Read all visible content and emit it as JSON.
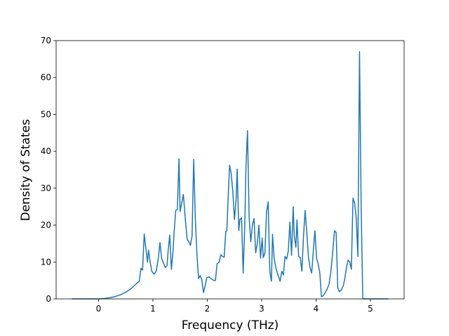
{
  "chart_data": {
    "type": "line",
    "xlabel": "Frequency (THz)",
    "ylabel": "Density of States",
    "color": "#1f77b4",
    "x": [
      -0.49,
      0,
      0.1,
      0.2,
      0.3,
      0.4,
      0.5,
      0.6,
      0.7,
      0.75,
      0.78,
      0.81,
      0.84,
      0.88,
      0.9,
      0.92,
      0.95,
      0.98,
      1.02,
      1.06,
      1.1,
      1.13,
      1.16,
      1.2,
      1.23,
      1.26,
      1.28,
      1.31,
      1.34,
      1.37,
      1.39,
      1.42,
      1.45,
      1.48,
      1.5,
      1.53,
      1.56,
      1.6,
      1.63,
      1.66,
      1.69,
      1.72,
      1.75,
      1.78,
      1.81,
      1.84,
      1.87,
      1.9,
      1.93,
      1.96,
      1.99,
      2.03,
      2.07,
      2.12,
      2.15,
      2.18,
      2.22,
      2.25,
      2.28,
      2.31,
      2.34,
      2.36,
      2.38,
      2.41,
      2.44,
      2.47,
      2.5,
      2.53,
      2.55,
      2.58,
      2.6,
      2.63,
      2.66,
      2.69,
      2.71,
      2.74,
      2.77,
      2.8,
      2.83,
      2.86,
      2.89,
      2.92,
      2.95,
      2.98,
      3.01,
      3.03,
      3.06,
      3.09,
      3.12,
      3.15,
      3.18,
      3.2,
      3.23,
      3.26,
      3.3,
      3.34,
      3.37,
      3.4,
      3.43,
      3.46,
      3.49,
      3.52,
      3.55,
      3.58,
      3.6,
      3.63,
      3.65,
      3.68,
      3.71,
      3.74,
      3.77,
      3.8,
      3.83,
      3.86,
      3.89,
      3.92,
      3.95,
      3.98,
      4.01,
      4.04,
      4.07,
      4.1,
      4.13,
      4.16,
      4.2,
      4.24,
      4.27,
      4.3,
      4.34,
      4.37,
      4.4,
      4.43,
      4.46,
      4.5,
      4.53,
      4.56,
      4.59,
      4.62,
      4.65,
      4.68,
      4.71,
      4.74,
      4.77,
      4.8,
      4.83,
      4.86,
      5.33
    ],
    "values": [
      0,
      0,
      0.1,
      0.3,
      0.6,
      1.1,
      1.8,
      2.8,
      4.2,
      4.8,
      8.3,
      7.8,
      17.6,
      12.5,
      10,
      13.2,
      10,
      7.5,
      6.7,
      7.5,
      11,
      15.3,
      11,
      9.5,
      8.5,
      9,
      13,
      17.3,
      8,
      13,
      18,
      24,
      24.2,
      38,
      23.7,
      26,
      28.3,
      21,
      16.2,
      15.5,
      14.5,
      17,
      37.8,
      22,
      12,
      5.5,
      6.3,
      5.2,
      1.7,
      3.5,
      5.7,
      6,
      5.5,
      5,
      5,
      9.5,
      10,
      12,
      11.5,
      11.3,
      18.2,
      18.5,
      26,
      36.2,
      34,
      29,
      21.5,
      27,
      35.2,
      18.5,
      21.5,
      22,
      7,
      20,
      35,
      45.6,
      22,
      15.5,
      20,
      21.8,
      12.5,
      15,
      20,
      11,
      16.5,
      11.2,
      12.5,
      23.5,
      26.3,
      7.5,
      4.8,
      17.5,
      11,
      8.5,
      6.5,
      4.8,
      7.5,
      6.5,
      11.5,
      10.8,
      13,
      20.8,
      11.8,
      25,
      17,
      14,
      21.4,
      11.5,
      11.2,
      7.5,
      17,
      24,
      18,
      11.5,
      8.5,
      7,
      13,
      18.5,
      11,
      9.5,
      7,
      0.6,
      0.8,
      1.5,
      2.5,
      4,
      7,
      11.5,
      18.5,
      18,
      3,
      2,
      2.3,
      3.5,
      5.5,
      8.5,
      10.5,
      10,
      8,
      27.3,
      26,
      22,
      11.5,
      67,
      25,
      0,
      0
    ],
    "xlim": [
      -0.78,
      5.62
    ],
    "ylim": [
      0,
      70
    ],
    "xticks": [
      0,
      1,
      2,
      3,
      4,
      5
    ],
    "yticks": [
      0,
      10,
      20,
      30,
      40,
      50,
      60,
      70
    ]
  }
}
